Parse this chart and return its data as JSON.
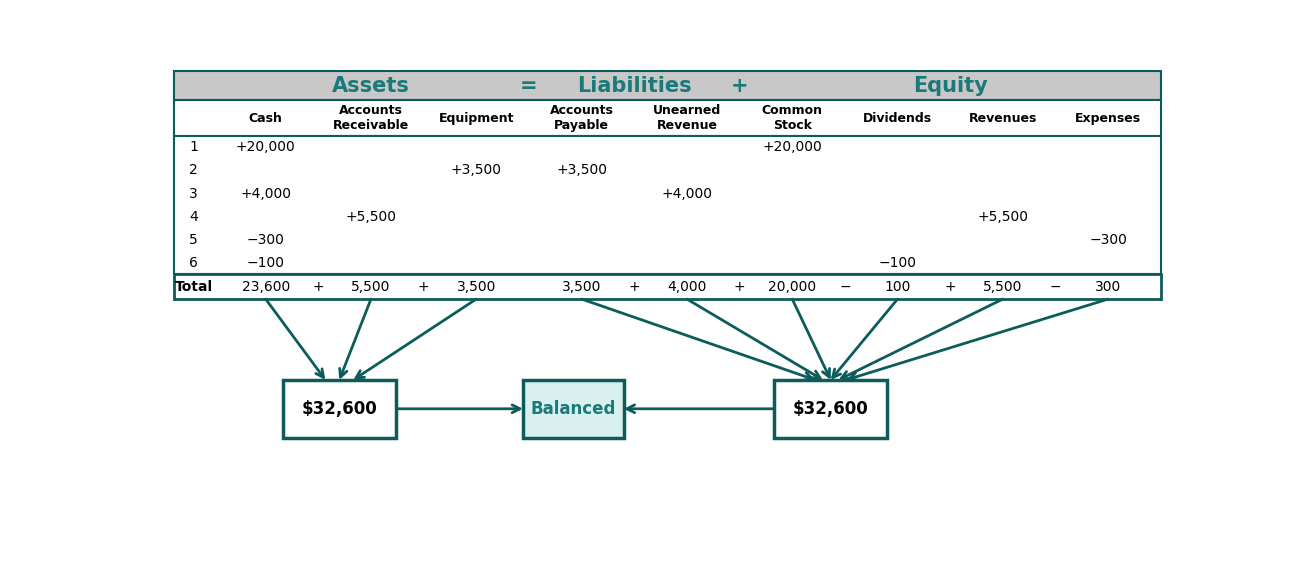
{
  "teal": "#1a7a7a",
  "teal_dark": "#0d5c5c",
  "teal_light": "#d9f0f0",
  "gray_header": "#c8c8c8",
  "white": "#ffffff",
  "black": "#000000",
  "col_headers": [
    "Cash",
    "Accounts\nReceivable",
    "Equipment",
    "Accounts\nPayable",
    "Unearned\nRevenue",
    "Common\nStock",
    "Dividends",
    "Revenues",
    "Expenses"
  ],
  "row_labels": [
    "1",
    "2",
    "3",
    "4",
    "5",
    "6"
  ],
  "table_data": [
    [
      "+20,000",
      "",
      "",
      "",
      "",
      "+20,000",
      "",
      "",
      ""
    ],
    [
      "",
      "",
      "+3,500",
      "+3,500",
      "",
      "",
      "",
      "",
      ""
    ],
    [
      "+4,000",
      "",
      "",
      "",
      "+4,000",
      "",
      "",
      "",
      ""
    ],
    [
      "",
      "+5,500",
      "",
      "",
      "",
      "",
      "",
      "+5,500",
      ""
    ],
    [
      "−300",
      "",
      "",
      "",
      "",
      "",
      "",
      "",
      "−300"
    ],
    [
      "−100",
      "",
      "",
      "",
      "",
      "",
      "−100",
      "",
      ""
    ]
  ],
  "total_col_vals": [
    "23,600",
    "5,500",
    "3,500",
    "3,500",
    "4,000",
    "20,000",
    "100",
    "5,500",
    "300"
  ],
  "operators": [
    [
      0,
      1,
      "+"
    ],
    [
      1,
      2,
      "+"
    ],
    [
      3,
      4,
      "+"
    ],
    [
      4,
      5,
      "+"
    ],
    [
      5,
      6,
      "−"
    ],
    [
      6,
      7,
      "+"
    ],
    [
      7,
      8,
      "−"
    ]
  ],
  "box_left_label": "$32,600",
  "box_right_label": "$32,600",
  "box_center_label": "Balanced",
  "assets_label": "Assets",
  "liab_label": "Liabilities",
  "eq_label": "Equity",
  "eq_sign": "=",
  "plus_sign": "+"
}
